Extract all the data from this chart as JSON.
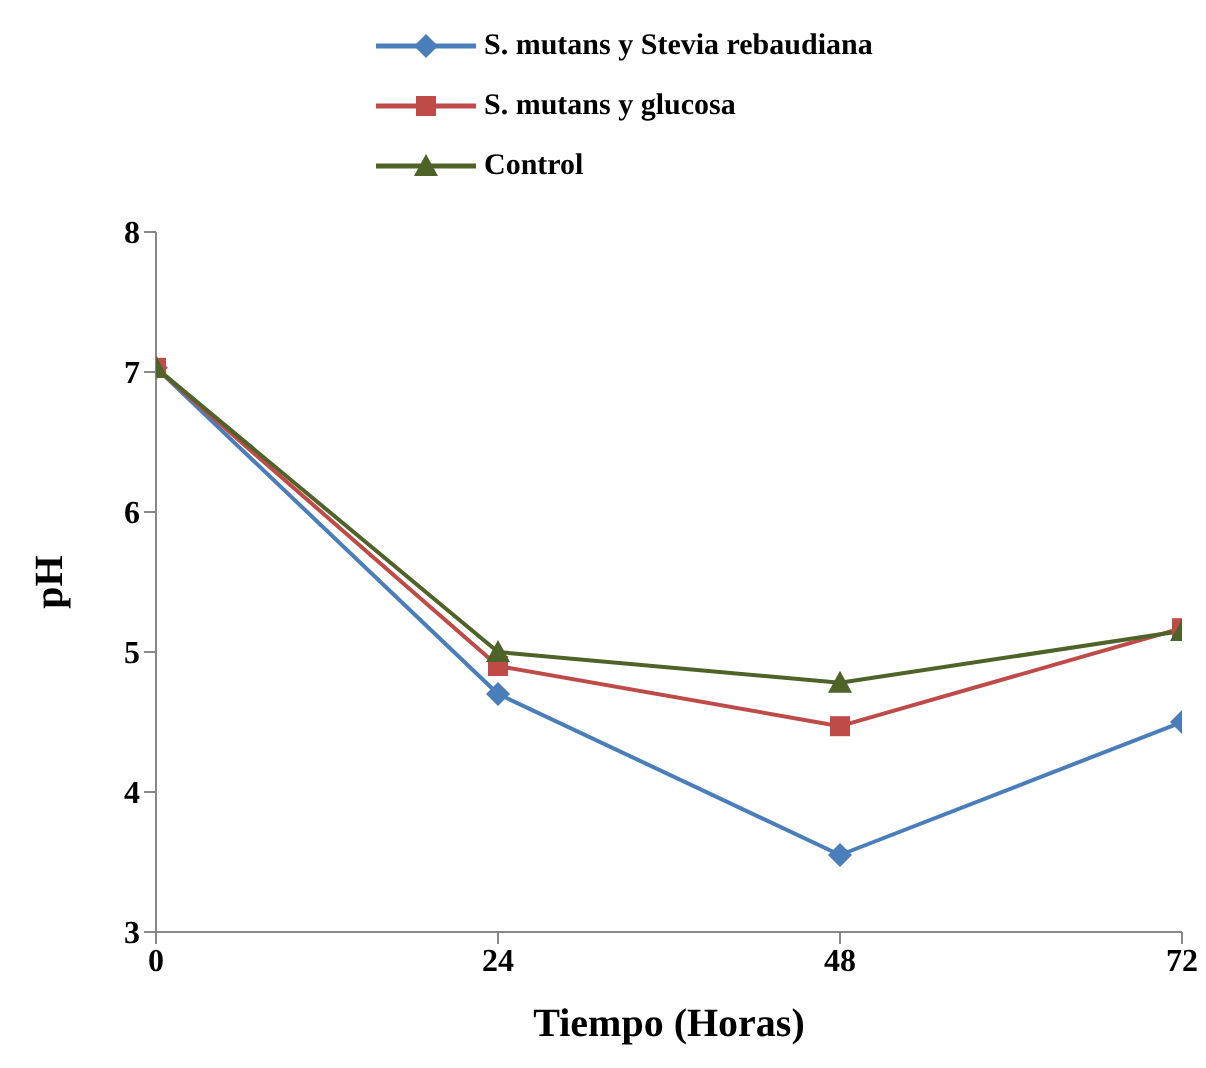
{
  "chart_data": {
    "type": "line",
    "xlabel": "Tiempo (Horas)",
    "ylabel": "pH",
    "x": [
      0,
      24,
      48,
      72
    ],
    "xlim": [
      0,
      72
    ],
    "xticks": [
      0,
      24,
      48,
      72
    ],
    "ylim": [
      3,
      8
    ],
    "yticks": [
      3,
      4,
      5,
      6,
      7,
      8
    ],
    "grid": false,
    "legend": "top",
    "series": [
      {
        "name": "S. mutans y Stevia rebaudiana",
        "color": "#4a7ebb",
        "marker": "diamond",
        "values": [
          7.03,
          4.7,
          3.55,
          4.5
        ]
      },
      {
        "name": "S. mutans y glucosa",
        "color": "#be4b48",
        "marker": "square",
        "values": [
          7.03,
          4.9,
          4.47,
          5.17
        ]
      },
      {
        "name": "Control",
        "color": "#4f6228",
        "marker": "triangle",
        "values": [
          7.03,
          5.0,
          4.78,
          5.15
        ]
      }
    ]
  }
}
